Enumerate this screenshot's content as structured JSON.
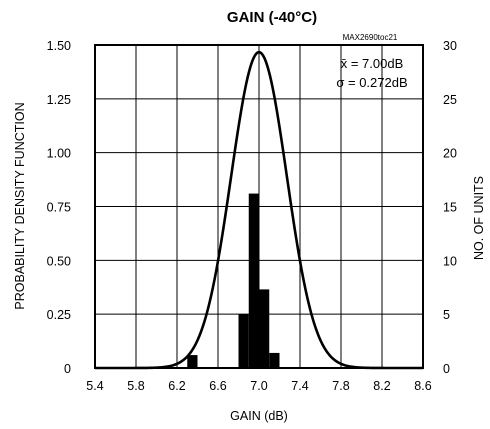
{
  "chart_data": {
    "type": "bar",
    "title": "GAIN (-40°C)",
    "watermark": "MAX2690toc21",
    "xlabel": "GAIN (dB)",
    "ylabel_left": "PROBABILITY DENSITY FUNCTION",
    "ylabel_right": "NO. OF UNITS",
    "xlim": [
      5.4,
      8.6
    ],
    "ylim_left": [
      0,
      1.5
    ],
    "ylim_right": [
      0,
      30
    ],
    "x_ticks": [
      "5.4",
      "5.8",
      "6.2",
      "6.6",
      "7.0",
      "7.4",
      "7.8",
      "8.2",
      "8.6"
    ],
    "y_ticks_left": [
      "0",
      "0.25",
      "0.50",
      "0.75",
      "1.00",
      "1.25",
      "1.50"
    ],
    "y_ticks_right": [
      "0",
      "5",
      "10",
      "15",
      "20",
      "25",
      "30"
    ],
    "grid": true,
    "histogram": {
      "bin_width": 0.1,
      "bins": [
        {
          "x_start": 6.3,
          "count": 1.2
        },
        {
          "x_start": 6.8,
          "count": 5
        },
        {
          "x_start": 6.9,
          "count": 16.2
        },
        {
          "x_start": 7.0,
          "count": 7.3
        },
        {
          "x_start": 7.1,
          "count": 1.4
        }
      ]
    },
    "pdf_curve": {
      "mean": 7.0,
      "sigma": 0.272
    },
    "annotations": {
      "mean_label": "x̄ = 7.00dB",
      "sigma_label": "σ = 0.272dB"
    }
  }
}
